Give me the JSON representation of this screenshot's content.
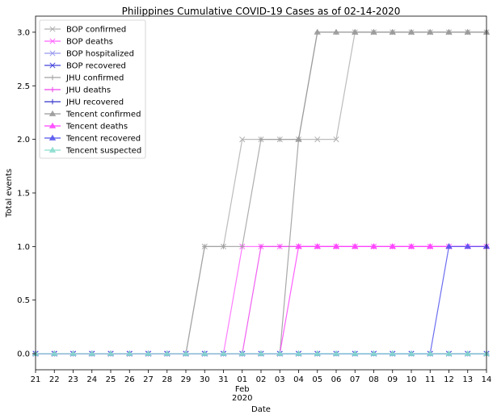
{
  "chart_data": {
    "type": "line",
    "title": "Philippines Cumulative COVID-19 Cases as of 02-14-2020",
    "xlabel": "Date",
    "ylabel": "Total events",
    "x": [
      "2020-01-21",
      "2020-01-22",
      "2020-01-23",
      "2020-01-24",
      "2020-01-25",
      "2020-01-26",
      "2020-01-27",
      "2020-01-28",
      "2020-01-29",
      "2020-01-30",
      "2020-01-31",
      "2020-02-01",
      "2020-02-02",
      "2020-02-03",
      "2020-02-04",
      "2020-02-05",
      "2020-02-06",
      "2020-02-07",
      "2020-02-08",
      "2020-02-09",
      "2020-02-10",
      "2020-02-11",
      "2020-02-12",
      "2020-02-13",
      "2020-02-14"
    ],
    "xtick_labels": [
      "21",
      "22",
      "23",
      "24",
      "25",
      "26",
      "27",
      "28",
      "29",
      "30",
      "31",
      "01",
      "02",
      "03",
      "04",
      "05",
      "06",
      "07",
      "08",
      "09",
      "10",
      "11",
      "12",
      "13",
      "14"
    ],
    "xtick_sublabels": {
      "index": 11,
      "month": "Feb",
      "year": "2020"
    },
    "ylim": [
      -0.15,
      3.15
    ],
    "yticks": [
      "0.0",
      "0.5",
      "1.0",
      "1.5",
      "2.0",
      "2.5",
      "3.0"
    ],
    "legend_position": "top-left",
    "series": [
      {
        "name": "BOP confirmed",
        "color": "#b0b0b0",
        "marker": "x",
        "values": [
          0,
          0,
          0,
          0,
          0,
          0,
          0,
          0,
          0,
          1,
          1,
          2,
          2,
          2,
          2,
          2,
          2,
          3,
          3,
          3,
          3,
          3,
          3,
          3,
          3
        ]
      },
      {
        "name": "BOP deaths",
        "color": "#ff66ff",
        "marker": "x",
        "values": [
          0,
          0,
          0,
          0,
          0,
          0,
          0,
          0,
          0,
          0,
          0,
          1,
          1,
          1,
          1,
          1,
          1,
          1,
          1,
          1,
          1,
          1,
          1,
          1,
          1
        ]
      },
      {
        "name": "BOP hospitalized",
        "color": "#9999ee",
        "marker": "x",
        "values": [
          0,
          0,
          0,
          0,
          0,
          0,
          0,
          0,
          0,
          0,
          0,
          0,
          0,
          0,
          0,
          0,
          0,
          0,
          0,
          0,
          0,
          0,
          0,
          0,
          0
        ]
      },
      {
        "name": "BOP recovered",
        "color": "#4444dd",
        "marker": "x",
        "values": [
          0,
          0,
          0,
          0,
          0,
          0,
          0,
          0,
          0,
          0,
          0,
          0,
          0,
          0,
          0,
          0,
          0,
          0,
          0,
          0,
          0,
          0,
          0,
          0,
          0
        ]
      },
      {
        "name": "JHU confirmed",
        "color": "#a0a0a0",
        "marker": "plus",
        "values": [
          0,
          0,
          0,
          0,
          0,
          0,
          0,
          0,
          0,
          1,
          1,
          1,
          2,
          2,
          2,
          3,
          3,
          3,
          3,
          3,
          3,
          3,
          3,
          3,
          3
        ]
      },
      {
        "name": "JHU deaths",
        "color": "#ee44ee",
        "marker": "plus",
        "values": [
          0,
          0,
          0,
          0,
          0,
          0,
          0,
          0,
          0,
          0,
          0,
          0,
          1,
          1,
          1,
          1,
          1,
          1,
          1,
          1,
          1,
          1,
          1,
          1,
          1
        ]
      },
      {
        "name": "JHU recovered",
        "color": "#3333cc",
        "marker": "plus",
        "values": [
          0,
          0,
          0,
          0,
          0,
          0,
          0,
          0,
          0,
          0,
          0,
          0,
          0,
          0,
          0,
          0,
          0,
          0,
          0,
          0,
          0,
          0,
          0,
          0,
          0
        ]
      },
      {
        "name": "Tencent confirmed",
        "color": "#999999",
        "marker": "triangle",
        "values": [
          0,
          0,
          0,
          0,
          0,
          0,
          0,
          0,
          0,
          0,
          0,
          0,
          0,
          0,
          2,
          3,
          3,
          3,
          3,
          3,
          3,
          3,
          3,
          3,
          3
        ]
      },
      {
        "name": "Tencent deaths",
        "color": "#ff44ff",
        "marker": "triangle",
        "values": [
          0,
          0,
          0,
          0,
          0,
          0,
          0,
          0,
          0,
          0,
          0,
          0,
          0,
          0,
          1,
          1,
          1,
          1,
          1,
          1,
          1,
          1,
          1,
          1,
          1
        ]
      },
      {
        "name": "Tencent recovered",
        "color": "#5555ee",
        "marker": "triangle",
        "values": [
          0,
          0,
          0,
          0,
          0,
          0,
          0,
          0,
          0,
          0,
          0,
          0,
          0,
          0,
          0,
          0,
          0,
          0,
          0,
          0,
          0,
          0,
          1,
          1,
          1
        ]
      },
      {
        "name": "Tencent suspected",
        "color": "#88ddcc",
        "marker": "triangle",
        "values": [
          0,
          0,
          0,
          0,
          0,
          0,
          0,
          0,
          0,
          0,
          0,
          0,
          0,
          0,
          0,
          0,
          0,
          0,
          0,
          0,
          0,
          0,
          0,
          0,
          0
        ]
      }
    ]
  }
}
